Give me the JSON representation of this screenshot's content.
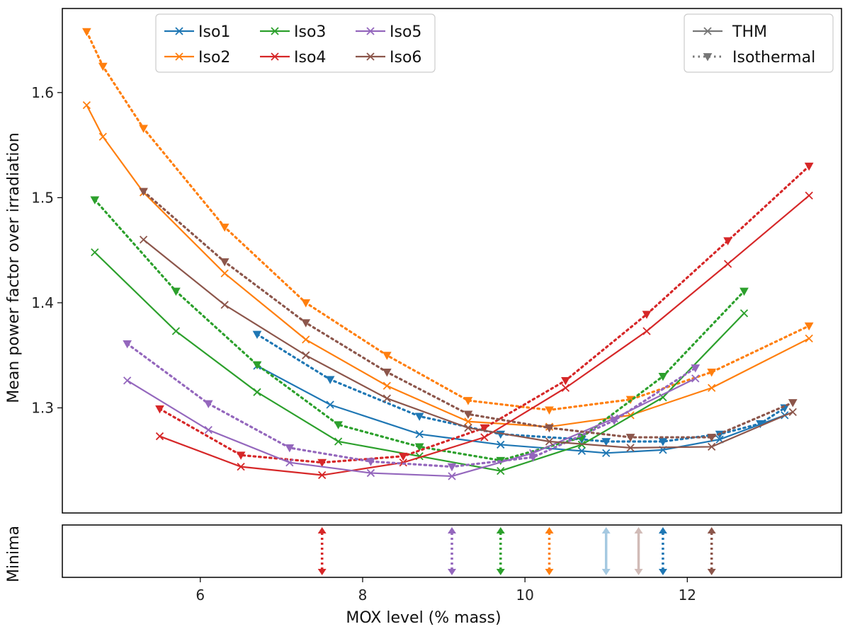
{
  "chart_data": {
    "type": "line",
    "ylabel": "Mean power factor over irradiation",
    "xlabel": "MOX level (% mass)",
    "minima_label": "Minima",
    "xlim": [
      4.3,
      13.9
    ],
    "ylim": [
      1.2,
      1.68
    ],
    "xticks": [
      6,
      8,
      10,
      12
    ],
    "yticks": [
      1.3,
      1.4,
      1.5,
      1.6
    ],
    "legend_series_position": "top-left",
    "legend_style_position": "top-right",
    "style_legend": [
      {
        "label": "THM",
        "style": "solid-x"
      },
      {
        "label": "Isothermal",
        "style": "dotted-triangle"
      }
    ],
    "series": [
      {
        "name": "Iso1",
        "color": "#1f77b4",
        "thm_x": [
          6.7,
          7.6,
          8.7,
          9.7,
          10.7,
          11.0,
          11.7,
          12.4,
          13.2
        ],
        "thm_y": [
          1.34,
          1.303,
          1.275,
          1.265,
          1.259,
          1.257,
          1.26,
          1.27,
          1.293
        ],
        "iso_x": [
          6.7,
          7.6,
          8.7,
          9.7,
          10.7,
          11.0,
          11.7,
          12.4,
          12.9,
          13.2
        ],
        "iso_y": [
          1.37,
          1.327,
          1.292,
          1.275,
          1.27,
          1.268,
          1.268,
          1.275,
          1.285,
          1.3
        ],
        "min_thm": 11.0,
        "min_iso": 11.7
      },
      {
        "name": "Iso2",
        "color": "#ff7f0e",
        "thm_x": [
          4.6,
          4.8,
          5.3,
          6.3,
          7.3,
          8.3,
          9.3,
          10.3,
          11.3,
          12.3,
          13.5
        ],
        "thm_y": [
          1.588,
          1.558,
          1.505,
          1.428,
          1.365,
          1.321,
          1.287,
          1.282,
          1.293,
          1.319,
          1.366
        ],
        "iso_x": [
          4.6,
          4.8,
          5.3,
          6.3,
          7.3,
          8.3,
          9.3,
          10.3,
          11.3,
          12.3,
          13.5
        ],
        "iso_y": [
          1.658,
          1.625,
          1.566,
          1.472,
          1.4,
          1.35,
          1.307,
          1.298,
          1.308,
          1.334,
          1.378
        ],
        "min_iso": 10.3
      },
      {
        "name": "Iso3",
        "color": "#2ca02c",
        "thm_x": [
          4.7,
          5.7,
          6.7,
          7.7,
          8.7,
          9.7,
          10.7,
          11.7,
          12.7
        ],
        "thm_y": [
          1.448,
          1.373,
          1.315,
          1.268,
          1.254,
          1.24,
          1.265,
          1.31,
          1.39
        ],
        "iso_x": [
          4.7,
          5.7,
          6.7,
          7.7,
          8.7,
          9.7,
          10.7,
          11.7,
          12.7
        ],
        "iso_y": [
          1.498,
          1.411,
          1.341,
          1.284,
          1.263,
          1.25,
          1.272,
          1.33,
          1.411
        ],
        "min_iso": 9.7
      },
      {
        "name": "Iso4",
        "color": "#d62728",
        "thm_x": [
          5.5,
          6.5,
          7.5,
          8.5,
          9.5,
          10.5,
          11.5,
          12.5,
          13.5
        ],
        "thm_y": [
          1.273,
          1.244,
          1.236,
          1.248,
          1.272,
          1.319,
          1.373,
          1.437,
          1.502
        ],
        "iso_x": [
          5.5,
          6.5,
          7.5,
          8.5,
          9.5,
          10.5,
          11.5,
          12.5,
          13.5
        ],
        "iso_y": [
          1.299,
          1.255,
          1.248,
          1.254,
          1.281,
          1.326,
          1.389,
          1.459,
          1.53
        ],
        "min_iso": 7.5
      },
      {
        "name": "Iso5",
        "color": "#9467bd",
        "thm_x": [
          5.1,
          6.1,
          7.1,
          8.1,
          9.1,
          10.1,
          11.1,
          12.1
        ],
        "thm_y": [
          1.326,
          1.279,
          1.248,
          1.238,
          1.235,
          1.257,
          1.29,
          1.328
        ],
        "iso_x": [
          5.1,
          6.1,
          7.1,
          8.1,
          9.1,
          10.1,
          11.1,
          12.1
        ],
        "iso_y": [
          1.361,
          1.304,
          1.262,
          1.249,
          1.244,
          1.253,
          1.288,
          1.338
        ],
        "min_iso": 9.1
      },
      {
        "name": "Iso6",
        "color": "#8c564b",
        "thm_x": [
          5.3,
          6.3,
          7.3,
          8.3,
          9.3,
          10.3,
          11.3,
          12.3,
          13.3
        ],
        "thm_y": [
          1.46,
          1.398,
          1.35,
          1.309,
          1.281,
          1.268,
          1.262,
          1.263,
          1.296
        ],
        "iso_x": [
          5.3,
          6.3,
          7.3,
          8.3,
          9.3,
          10.3,
          11.3,
          12.3,
          13.3
        ],
        "iso_y": [
          1.506,
          1.439,
          1.381,
          1.334,
          1.294,
          1.281,
          1.272,
          1.272,
          1.305
        ],
        "min_thm": 11.4,
        "min_iso": 12.3
      }
    ]
  }
}
